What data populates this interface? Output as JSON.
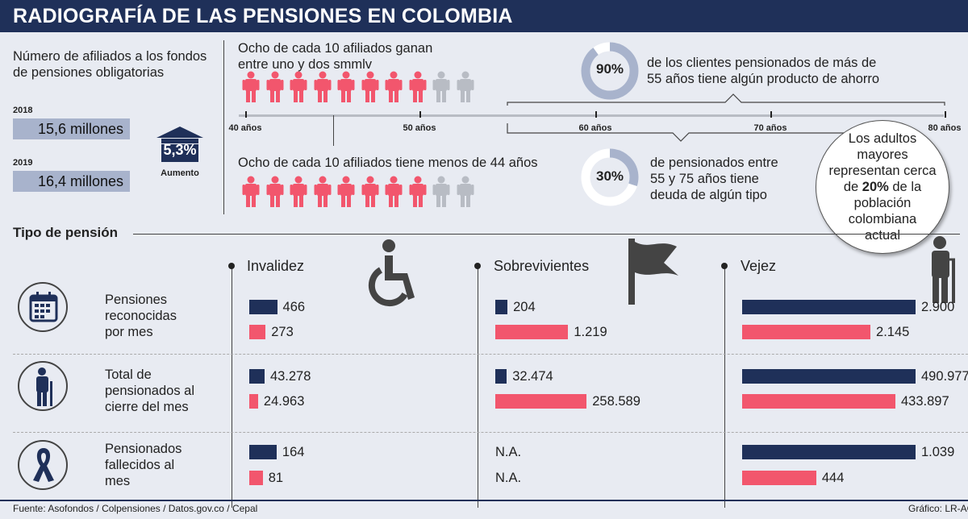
{
  "header": {
    "title": "RADIOGRAFÍA DE LAS PENSIONES EN COLOMBIA"
  },
  "afiliados": {
    "label": "Número de afiliados a los fondos\nde pensiones obligatorias",
    "year1": "2018",
    "value1": "15,6 millones",
    "year2": "2019",
    "value2": "16,4 millones",
    "growth": "5,3%",
    "growth_label": "Aumento"
  },
  "people": {
    "top_text": "Ocho de cada 10 afiliados ganan\nentre uno y dos smmlv",
    "bottom_text": "Ocho de cada 10 afiliados tiene menos de 44 años",
    "highlight_count": 8,
    "total": 10
  },
  "age_axis": {
    "ticks": [
      "40 años",
      "50 años",
      "60 años",
      "70 años",
      "80 años"
    ]
  },
  "stats": {
    "top_pct": "90%",
    "top_value": 90,
    "top_text": "de los clientes pensionados de más de\n55 años tiene algún producto de ahorro",
    "bottom_pct": "30%",
    "bottom_value": 30,
    "bottom_text": "de pensionados entre\n55 y 75 años tiene\ndeuda de algún tipo"
  },
  "callout": {
    "pre": "Los adultos\nmayores\nrepresentan cerca\nde ",
    "bold": "20%",
    "post": " de la\npoblación\ncolombiana\nactual"
  },
  "section_title": "Tipo de pensión",
  "row_labels": [
    "Pensiones\nreconocidas\npor mes",
    "Total de\npensionados al\ncierre del mes",
    "Pensionados\nfallecidos al\nmes"
  ],
  "icons": [
    "calendar-icon",
    "elderly-person-icon",
    "ribbon-icon",
    "wheelchair-icon",
    "flag-icon"
  ],
  "colors": {
    "navy": "#1f3059",
    "pink": "#f2566d",
    "gray": "#b8bcc4"
  },
  "chart_data": {
    "type": "bar",
    "categories": [
      "Invalidez",
      "Sobrevivientes",
      "Vejez"
    ],
    "rows": [
      {
        "pairs": [
          {
            "v1": 466,
            "l1": "466",
            "v2": 273,
            "l2": "273"
          },
          {
            "v1": 204,
            "l1": "204",
            "v2": 1219,
            "l2": "1.219"
          },
          {
            "v1": 2900,
            "l1": "2.900",
            "v2": 2145,
            "l2": "2.145"
          }
        ]
      },
      {
        "pairs": [
          {
            "v1": 43278,
            "l1": "43.278",
            "v2": 24963,
            "l2": "24.963"
          },
          {
            "v1": 32474,
            "l1": "32.474",
            "v2": 258589,
            "l2": "258.589"
          },
          {
            "v1": 490977,
            "l1": "490.977",
            "v2": 433897,
            "l2": "433.897"
          }
        ]
      },
      {
        "pairs": [
          {
            "v1": 164,
            "l1": "164",
            "v2": 81,
            "l2": "81"
          },
          {
            "v1": null,
            "l1": "N.A.",
            "v2": null,
            "l2": "N.A."
          },
          {
            "v1": 1039,
            "l1": "1.039",
            "v2": 444,
            "l2": "444"
          }
        ]
      }
    ]
  },
  "footer": {
    "source": "Fuente: Asofondos / Colpensiones / Datos.gov.co / Cepal",
    "credit": "Gráfico: LR-AG"
  }
}
